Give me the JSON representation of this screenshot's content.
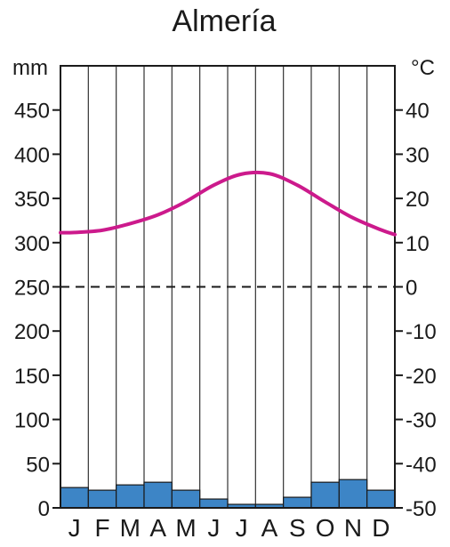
{
  "chart_data": {
    "type": "climograph",
    "title": "Almería",
    "months": [
      "J",
      "F",
      "M",
      "A",
      "M",
      "J",
      "J",
      "A",
      "S",
      "O",
      "N",
      "D"
    ],
    "precipitation": {
      "unit": "mm",
      "type": "bar",
      "color": "#3d85c6",
      "values": [
        23,
        20,
        26,
        29,
        20,
        10,
        4,
        4,
        12,
        29,
        32,
        20
      ],
      "ylim": [
        0,
        500
      ],
      "ticks": [
        0,
        50,
        100,
        150,
        200,
        250,
        300,
        350,
        400,
        450
      ]
    },
    "temperature": {
      "unit": "°C",
      "type": "line",
      "color": "#cc1a8c",
      "values": [
        12.3,
        12.8,
        14.3,
        16.3,
        19.3,
        23.0,
        25.5,
        25.6,
        23.0,
        19.2,
        15.6,
        12.9
      ],
      "ylim": [
        -50,
        50
      ],
      "ticks": [
        -50,
        -40,
        -30,
        -20,
        -10,
        0,
        10,
        20,
        30,
        40
      ]
    },
    "zero_line": "dashed",
    "grid": "vertical"
  }
}
